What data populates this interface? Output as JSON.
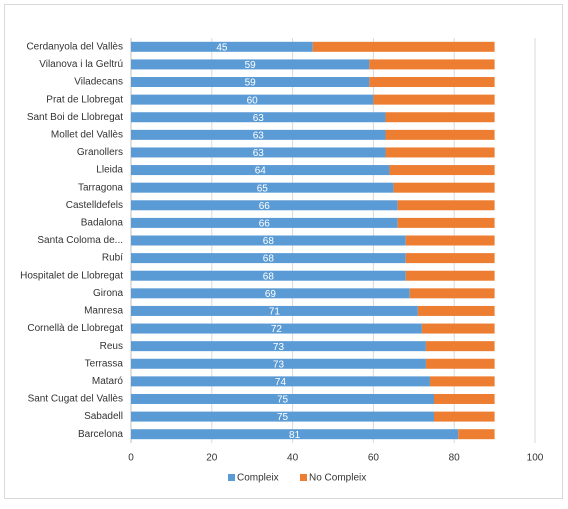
{
  "chart_data": {
    "type": "stacked_barh",
    "categories": [
      "Cerdanyola del Vallès",
      "Vilanova i la Geltrú",
      "Viladecans",
      "Prat de Llobregat",
      "Sant Boi de Llobregat",
      "Mollet del Vallès",
      "Granollers",
      "Lleida",
      "Tarragona",
      "Castelldefels",
      "Badalona",
      "Santa Coloma de...",
      "Rubí",
      "Hospitalet de Llobregat",
      "Girona",
      "Manresa",
      "Cornellà de Llobregat",
      "Reus",
      "Terrassa",
      "Mataró",
      "Sant Cugat del Vallès",
      "Sabadell",
      "Barcelona"
    ],
    "series": [
      {
        "name": "Compleix",
        "color": "#5b9bd5",
        "values": [
          45,
          59,
          59,
          60,
          63,
          63,
          63,
          64,
          65,
          66,
          66,
          68,
          68,
          68,
          69,
          71,
          72,
          73,
          73,
          74,
          75,
          75,
          81
        ]
      },
      {
        "name": "No Compleix",
        "color": "#ed7d31",
        "values": [
          45,
          31,
          31,
          30,
          27,
          27,
          27,
          26,
          25,
          24,
          24,
          22,
          22,
          22,
          21,
          19,
          18,
          17,
          17,
          16,
          15,
          15,
          9
        ]
      }
    ],
    "xlim": [
      0,
      100
    ],
    "xticks": [
      0,
      20,
      40,
      60,
      80,
      100
    ],
    "grid": true,
    "legend": "bottom"
  }
}
